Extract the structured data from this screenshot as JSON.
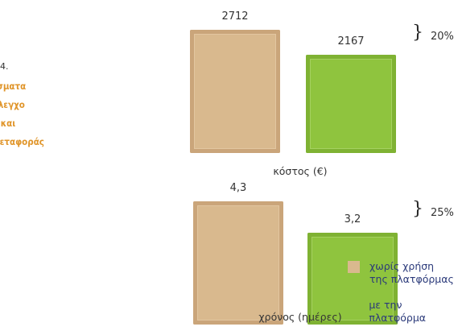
{
  "side_title": {
    "num": "4.",
    "lines": [
      "έσματα",
      " έλεγχο",
      "ς και",
      " μεταφοράς"
    ]
  },
  "legend": [
    {
      "label_lines": [
        "χωρίς χρήση",
        "της πλατφόρμας"
      ],
      "color": "#d9b98e"
    },
    {
      "label_lines": [
        "με την πλατφόρμα"
      ],
      "color": "#8fc43e"
    }
  ],
  "chart_data": [
    {
      "type": "bar",
      "xlabel": "κόστος (€)",
      "categories": [
        "χωρίς χρήση της πλατφόρμας",
        "με την πλατφόρμα"
      ],
      "values": [
        2712,
        2167
      ],
      "value_labels": [
        "2712",
        "2167"
      ],
      "difference_label": "20%",
      "colors": [
        "#d9b98e",
        "#8fc43e"
      ]
    },
    {
      "type": "bar",
      "xlabel": "χρόνος (ημέρες)",
      "categories": [
        "χωρίς χρήση της πλατφόρμας",
        "με την πλατφόρμα"
      ],
      "values": [
        4.3,
        3.2
      ],
      "value_labels": [
        "4,3",
        "3,2"
      ],
      "difference_label": "25%",
      "colors": [
        "#d9b98e",
        "#8fc43e"
      ]
    }
  ]
}
